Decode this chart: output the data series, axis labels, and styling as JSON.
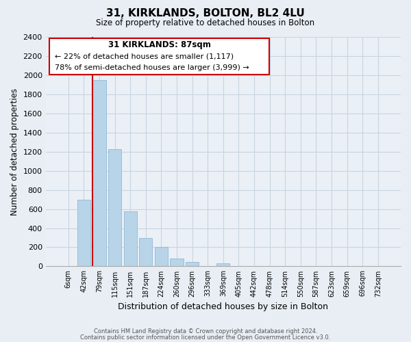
{
  "title": "31, KIRKLANDS, BOLTON, BL2 4LU",
  "subtitle": "Size of property relative to detached houses in Bolton",
  "xlabel": "Distribution of detached houses by size in Bolton",
  "ylabel": "Number of detached properties",
  "bar_labels": [
    "6sqm",
    "42sqm",
    "79sqm",
    "115sqm",
    "151sqm",
    "187sqm",
    "224sqm",
    "260sqm",
    "296sqm",
    "333sqm",
    "369sqm",
    "405sqm",
    "442sqm",
    "478sqm",
    "514sqm",
    "550sqm",
    "587sqm",
    "623sqm",
    "659sqm",
    "696sqm",
    "732sqm"
  ],
  "bar_values": [
    0,
    700,
    1950,
    1230,
    575,
    300,
    200,
    80,
    45,
    0,
    35,
    0,
    0,
    0,
    0,
    0,
    0,
    0,
    0,
    0,
    0
  ],
  "bar_color": "#b8d4e8",
  "bar_edge_color": "#9bbdd8",
  "ylim": [
    0,
    2400
  ],
  "yticks": [
    0,
    200,
    400,
    600,
    800,
    1000,
    1200,
    1400,
    1600,
    1800,
    2000,
    2200,
    2400
  ],
  "vline_x_index": 2,
  "vline_color": "#cc0000",
  "annotation_title": "31 KIRKLANDS: 87sqm",
  "annotation_line1": "← 22% of detached houses are smaller (1,117)",
  "annotation_line2": "78% of semi-detached houses are larger (3,999) →",
  "annotation_box_color": "#ffffff",
  "annotation_box_edge": "#cc0000",
  "footer1": "Contains HM Land Registry data © Crown copyright and database right 2024.",
  "footer2": "Contains public sector information licensed under the Open Government Licence v3.0.",
  "background_color": "#e8eef4",
  "plot_bg_color": "#eaf0f6",
  "grid_color": "#c8d4e0"
}
